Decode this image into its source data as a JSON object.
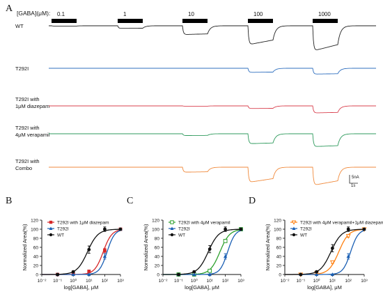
{
  "panel_a": {
    "letter": "A",
    "concentration_header": "[GABA](μM):",
    "concentrations": [
      "0.1",
      "1",
      "10",
      "100",
      "1000"
    ],
    "bar_color": "#000000",
    "rows": [
      {
        "label_lines": [
          "WT"
        ],
        "color": "#222222",
        "amplitudes": [
          0.01,
          0.09,
          0.3,
          0.65,
          0.86
        ]
      },
      {
        "label_lines": [
          "T292I"
        ],
        "color": "#2f6fbf",
        "amplitudes": [
          0,
          0,
          0,
          0.14,
          0.2
        ]
      },
      {
        "label_lines": [
          "T292I with",
          "1μM diazepam"
        ],
        "color": "#d9404e",
        "amplitudes": [
          0,
          0,
          0.01,
          0.09,
          0.24
        ]
      },
      {
        "label_lines": [
          "T292I with",
          "4μM verapamil"
        ],
        "color": "#2e9a5c",
        "amplitudes": [
          0,
          0,
          0.06,
          0.34,
          0.44
        ]
      },
      {
        "label_lines": [
          "T292I with",
          "Combo"
        ],
        "color": "#f08a3c",
        "amplitudes": [
          0,
          0,
          0.17,
          0.52,
          0.62
        ]
      }
    ],
    "scale_bar": {
      "current": "5nA",
      "time": "1s"
    }
  },
  "chart_data": [
    {
      "type": "line",
      "panel": "B",
      "ylabel": "Normalized Area(%)",
      "xlabel": "log[GABA], μM",
      "xscale": "log",
      "xlim": [
        0.01,
        1000
      ],
      "ylim": [
        0,
        120
      ],
      "x_ticks": [
        "10⁻²",
        "10⁻¹",
        "10⁰",
        "10¹",
        "10²",
        "10³"
      ],
      "y_ticks": [
        "0",
        "20",
        "40",
        "60",
        "80",
        "100",
        "120"
      ],
      "legend": "top-left",
      "series": [
        {
          "name": "T292I with 1μM diazepam",
          "color": "#d62728",
          "marker": "square",
          "x": [
            0.1,
            1,
            10,
            100,
            1000
          ],
          "y": [
            0,
            1,
            7,
            53,
            100
          ],
          "err": [
            0,
            1,
            2,
            5,
            0
          ],
          "ec50": 80,
          "hill": 1.6
        },
        {
          "name": "T292I",
          "color": "#1a5fb4",
          "marker": "triangle",
          "x": [
            0.1,
            1,
            10,
            100,
            1000
          ],
          "y": [
            0,
            0,
            0,
            40,
            100
          ],
          "err": [
            0,
            0,
            1,
            6,
            0
          ],
          "ec50": 140,
          "hill": 1.8
        },
        {
          "name": "WT",
          "color": "#111111",
          "marker": "circle",
          "x": [
            0.1,
            1,
            10,
            100,
            1000
          ],
          "y": [
            0,
            6,
            55,
            100,
            100
          ],
          "err": [
            0,
            2,
            8,
            5,
            0
          ],
          "ec50": 8,
          "hill": 1.3
        }
      ]
    },
    {
      "type": "line",
      "panel": "C",
      "ylabel": "Normalized Area(%)",
      "xlabel": "log[GABA], μM",
      "xscale": "log",
      "xlim": [
        0.01,
        1000
      ],
      "ylim": [
        0,
        120
      ],
      "x_ticks": [
        "10⁻²",
        "10⁻¹",
        "10⁰",
        "10¹",
        "10²",
        "10³"
      ],
      "y_ticks": [
        "0",
        "20",
        "40",
        "60",
        "80",
        "100",
        "120"
      ],
      "legend": "top-left",
      "series": [
        {
          "name": "T292I with 4μM verapamil",
          "color": "#2ca02c",
          "marker": "open-square",
          "x": [
            0.1,
            1,
            10,
            100,
            1000
          ],
          "y": [
            0,
            0,
            8,
            74,
            100
          ],
          "err": [
            0,
            0,
            1,
            3,
            0
          ],
          "ec50": 45,
          "hill": 1.4
        },
        {
          "name": "T292I",
          "color": "#1a5fb4",
          "marker": "triangle",
          "x": [
            0.1,
            1,
            10,
            100,
            1000
          ],
          "y": [
            0,
            0,
            0,
            40,
            100
          ],
          "err": [
            0,
            0,
            1,
            6,
            0
          ],
          "ec50": 140,
          "hill": 1.8
        },
        {
          "name": "WT",
          "color": "#111111",
          "marker": "circle",
          "x": [
            0.1,
            1,
            10,
            100,
            1000
          ],
          "y": [
            0,
            6,
            56,
            100,
            100
          ],
          "err": [
            0,
            2,
            8,
            5,
            0
          ],
          "ec50": 8,
          "hill": 1.3
        }
      ]
    },
    {
      "type": "line",
      "panel": "D",
      "ylabel": "Normalized Area(%)",
      "xlabel": "log[GABA], μM",
      "xscale": "log",
      "xlim": [
        0.01,
        1000
      ],
      "ylim": [
        0,
        120
      ],
      "x_ticks": [
        "10⁻²",
        "10⁻¹",
        "10⁰",
        "10¹",
        "10²",
        "10³"
      ],
      "y_ticks": [
        "0",
        "20",
        "40",
        "60",
        "80",
        "100",
        "120"
      ],
      "legend": "top-left",
      "series": [
        {
          "name": "T292I with 4μM verapamil+1μM diazepam",
          "color": "#ff7f0e",
          "marker": "open-triangle-down",
          "x": [
            0.1,
            1,
            10,
            100,
            1000
          ],
          "y": [
            0,
            3,
            27,
            85,
            100
          ],
          "err": [
            0,
            1,
            3,
            3,
            0
          ],
          "ec50": 25,
          "hill": 1.4
        },
        {
          "name": "T292I",
          "color": "#1a5fb4",
          "marker": "triangle",
          "x": [
            0.1,
            1,
            10,
            100,
            1000
          ],
          "y": [
            0,
            0,
            0,
            40,
            100
          ],
          "err": [
            0,
            0,
            1,
            6,
            0
          ],
          "ec50": 140,
          "hill": 1.8
        },
        {
          "name": "WT",
          "color": "#111111",
          "marker": "circle",
          "x": [
            0.1,
            1,
            10,
            100,
            1000
          ],
          "y": [
            0,
            6,
            58,
            100,
            100
          ],
          "err": [
            0,
            2,
            8,
            5,
            0
          ],
          "ec50": 8,
          "hill": 1.3
        }
      ]
    }
  ]
}
